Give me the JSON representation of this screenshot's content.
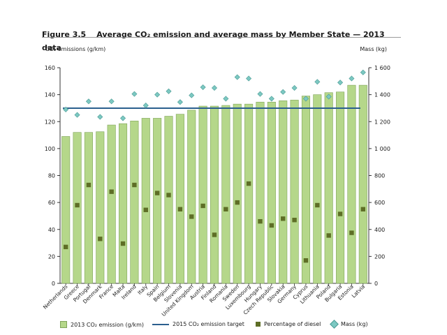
{
  "figure": {
    "number": "Figure 3.5",
    "title": "Average CO₂ emission and average mass by Member State — 2013 data"
  },
  "axes": {
    "left_label": "CO₂ emissions (g/km)",
    "right_label": "Mass (kg)"
  },
  "legend": {
    "bars": "2013 CO₂ emission (g/km)",
    "target": "2015 CO₂ emission target",
    "diesel": "Percentage of diesel",
    "mass": "Mass (kg)"
  },
  "colors": {
    "bar_fill": "#b5d78a",
    "bar_stroke": "#7fa45a",
    "target_line": "#2b5f8e",
    "diesel_marker": "#5e6e26",
    "mass_marker": "#7cc8c2",
    "mass_marker_stroke": "#4a9a93",
    "axis": "#333333"
  },
  "chart_data": {
    "type": "bar",
    "categories": [
      "Netherlands",
      "Greece",
      "Portugal",
      "Denmark",
      "France",
      "Malta",
      "Ireland",
      "Italy",
      "Spain",
      "Belgium",
      "Slovenia",
      "United Kingdom",
      "Austria",
      "Finland",
      "Romania",
      "Sweden",
      "Luxembourg",
      "Hungary",
      "Czech Republic",
      "Slovakia",
      "Germany",
      "Cyprus",
      "Lithuania",
      "Poland",
      "Bulgaria",
      "Estonia",
      "Latvia"
    ],
    "y_left": {
      "min": 0,
      "max": 160,
      "ticks": [
        0,
        20,
        40,
        60,
        80,
        100,
        120,
        140,
        160
      ],
      "tick_labels": [
        "0",
        "20",
        "40",
        "60",
        "80",
        "100",
        "120",
        "140",
        "160"
      ]
    },
    "y_right": {
      "min": 0,
      "max": 1600,
      "ticks": [
        0,
        200,
        400,
        600,
        800,
        1000,
        1200,
        1400,
        1600
      ],
      "tick_labels": [
        "0",
        "200",
        "400",
        "600",
        "800",
        "1 000",
        "1 200",
        "1 400",
        "1 600"
      ]
    },
    "target": 130,
    "series": [
      {
        "name": "2013 CO₂ emission (g/km)",
        "type": "bar",
        "axis": "left",
        "values": [
          109,
          112,
          112,
          112.5,
          117.5,
          118.5,
          120.5,
          122.5,
          122.5,
          124,
          125.5,
          128.5,
          131.5,
          131.5,
          132,
          133,
          133,
          134.5,
          134.5,
          135.5,
          136,
          139,
          140,
          141.5,
          142,
          147,
          147
        ]
      },
      {
        "name": "Percentage of diesel",
        "type": "marker",
        "axis": "left",
        "values": [
          27,
          58,
          73,
          33,
          68,
          29.5,
          73,
          54.5,
          67,
          65.5,
          55,
          49.5,
          57.5,
          36,
          55,
          60,
          74,
          46,
          43,
          48,
          47,
          17,
          58,
          35.5,
          51.5,
          37.5,
          55
        ]
      },
      {
        "name": "Mass (kg)",
        "type": "marker",
        "axis": "right",
        "values": [
          1290,
          1250,
          1350,
          1235,
          1350,
          1225,
          1405,
          1320,
          1400,
          1425,
          1345,
          1395,
          1455,
          1450,
          1370,
          1530,
          1520,
          1405,
          1370,
          1420,
          1450,
          1370,
          1495,
          1385,
          1490,
          1520,
          1565
        ]
      }
    ],
    "grid": false,
    "legend_position": "bottom"
  }
}
